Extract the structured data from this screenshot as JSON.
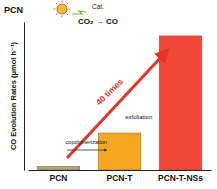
{
  "chart_data": {
    "type": "bar",
    "y_label": "CO Evolution Rates (μmol h⁻¹)",
    "categories": [
      "PCN",
      "PCN-T",
      "PCN-T-NSs"
    ],
    "values": [
      1.2,
      12,
      43.5
    ],
    "colors": [
      "#a9a57a",
      "#f5a623",
      "#f0473a"
    ],
    "ylim": [
      0,
      48
    ],
    "tick_labels": "x",
    "grid": false,
    "annotations": [
      "PCN",
      "Cat.",
      "CO₂ → CO",
      "copolymerization",
      "exfoliation",
      "40 times"
    ]
  }
}
